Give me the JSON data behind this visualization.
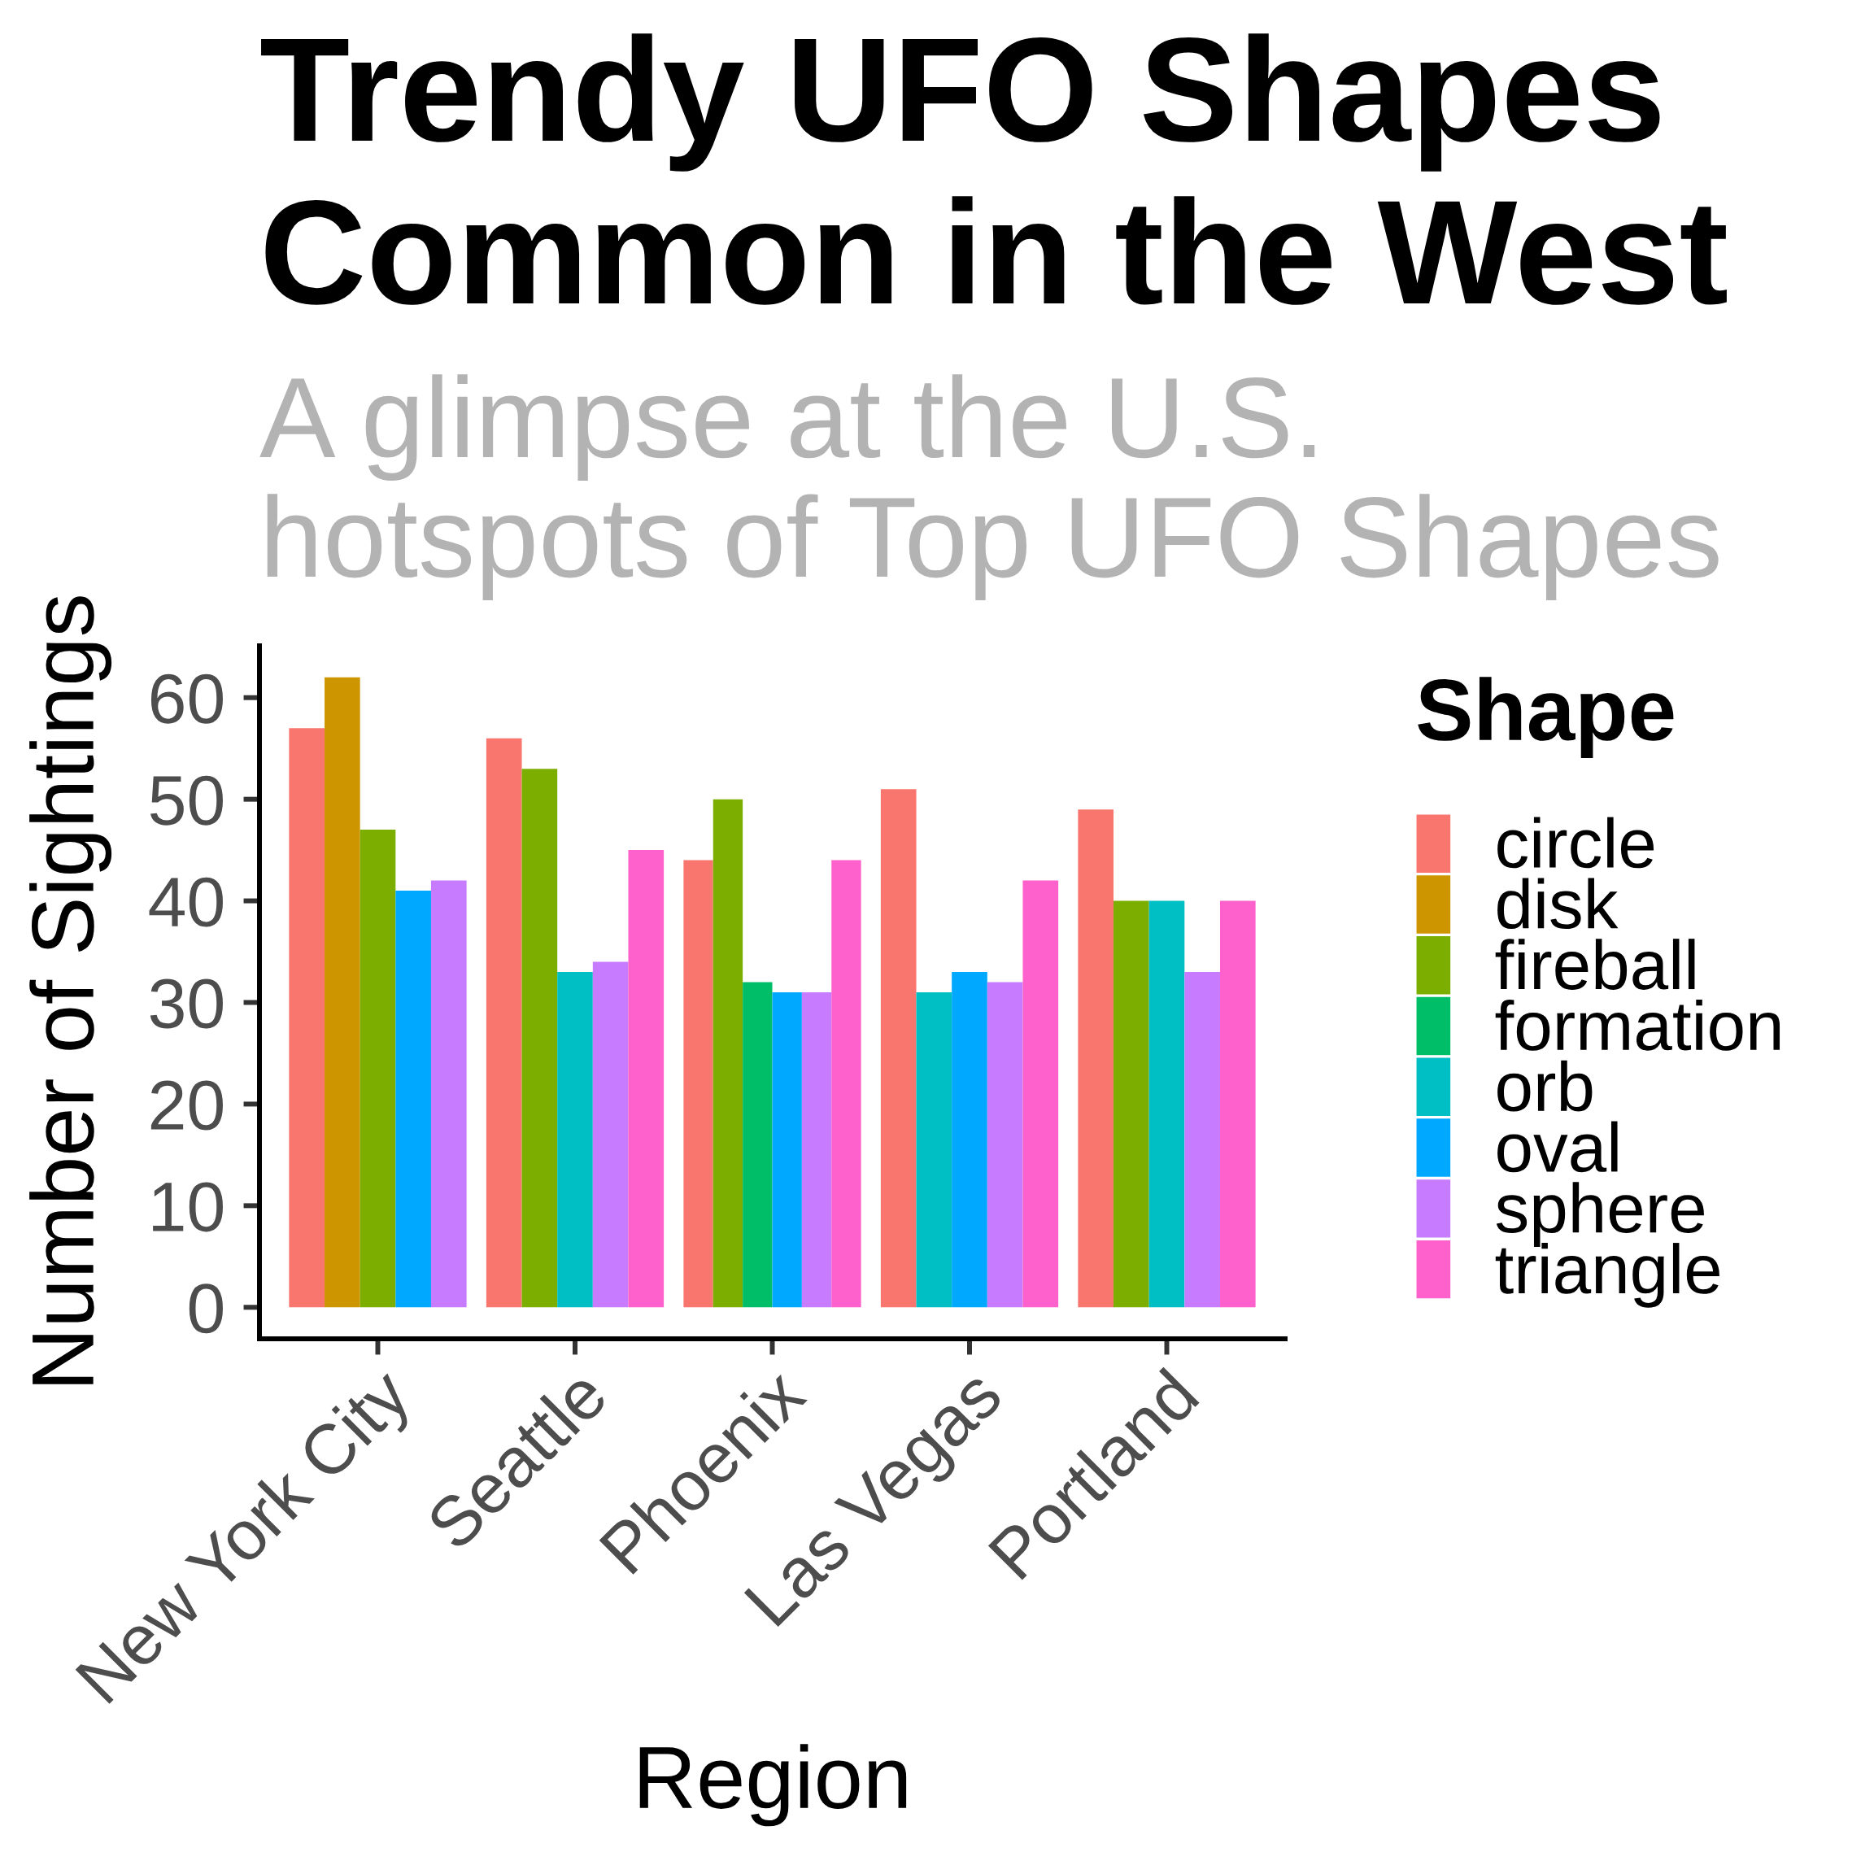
{
  "chart_data": {
    "type": "bar",
    "title": "Trendy UFO Shapes\nCommon in the West",
    "subtitle": "A glimpse at the U.S.\nhotspots of Top UFO Shapes",
    "xlabel": "Region",
    "ylabel": "Number of Sightings",
    "legend_title": "Shape",
    "categories": [
      "New York City",
      "Seattle",
      "Phoenix",
      "Las Vegas",
      "Portland"
    ],
    "series": [
      {
        "name": "circle",
        "color": "#f8766d",
        "values": [
          57,
          56,
          44,
          51,
          49
        ]
      },
      {
        "name": "disk",
        "color": "#cd9600",
        "values": [
          62,
          null,
          null,
          null,
          null
        ]
      },
      {
        "name": "fireball",
        "color": "#7cae00",
        "values": [
          47,
          53,
          50,
          null,
          40
        ]
      },
      {
        "name": "formation",
        "color": "#00be67",
        "values": [
          null,
          null,
          32,
          null,
          null
        ]
      },
      {
        "name": "orb",
        "color": "#00bfc4",
        "values": [
          null,
          33,
          null,
          31,
          40
        ]
      },
      {
        "name": "oval",
        "color": "#00a9ff",
        "values": [
          41,
          null,
          31,
          33,
          null
        ]
      },
      {
        "name": "sphere",
        "color": "#c77cff",
        "values": [
          42,
          34,
          31,
          32,
          33
        ]
      },
      {
        "name": "triangle",
        "color": "#ff61cc",
        "values": [
          null,
          45,
          44,
          42,
          40
        ]
      }
    ],
    "ylim": [
      -3.1,
      65.1
    ],
    "yticks": [
      0,
      10,
      20,
      30,
      40,
      50,
      60
    ],
    "grid": false,
    "legend": "right"
  }
}
